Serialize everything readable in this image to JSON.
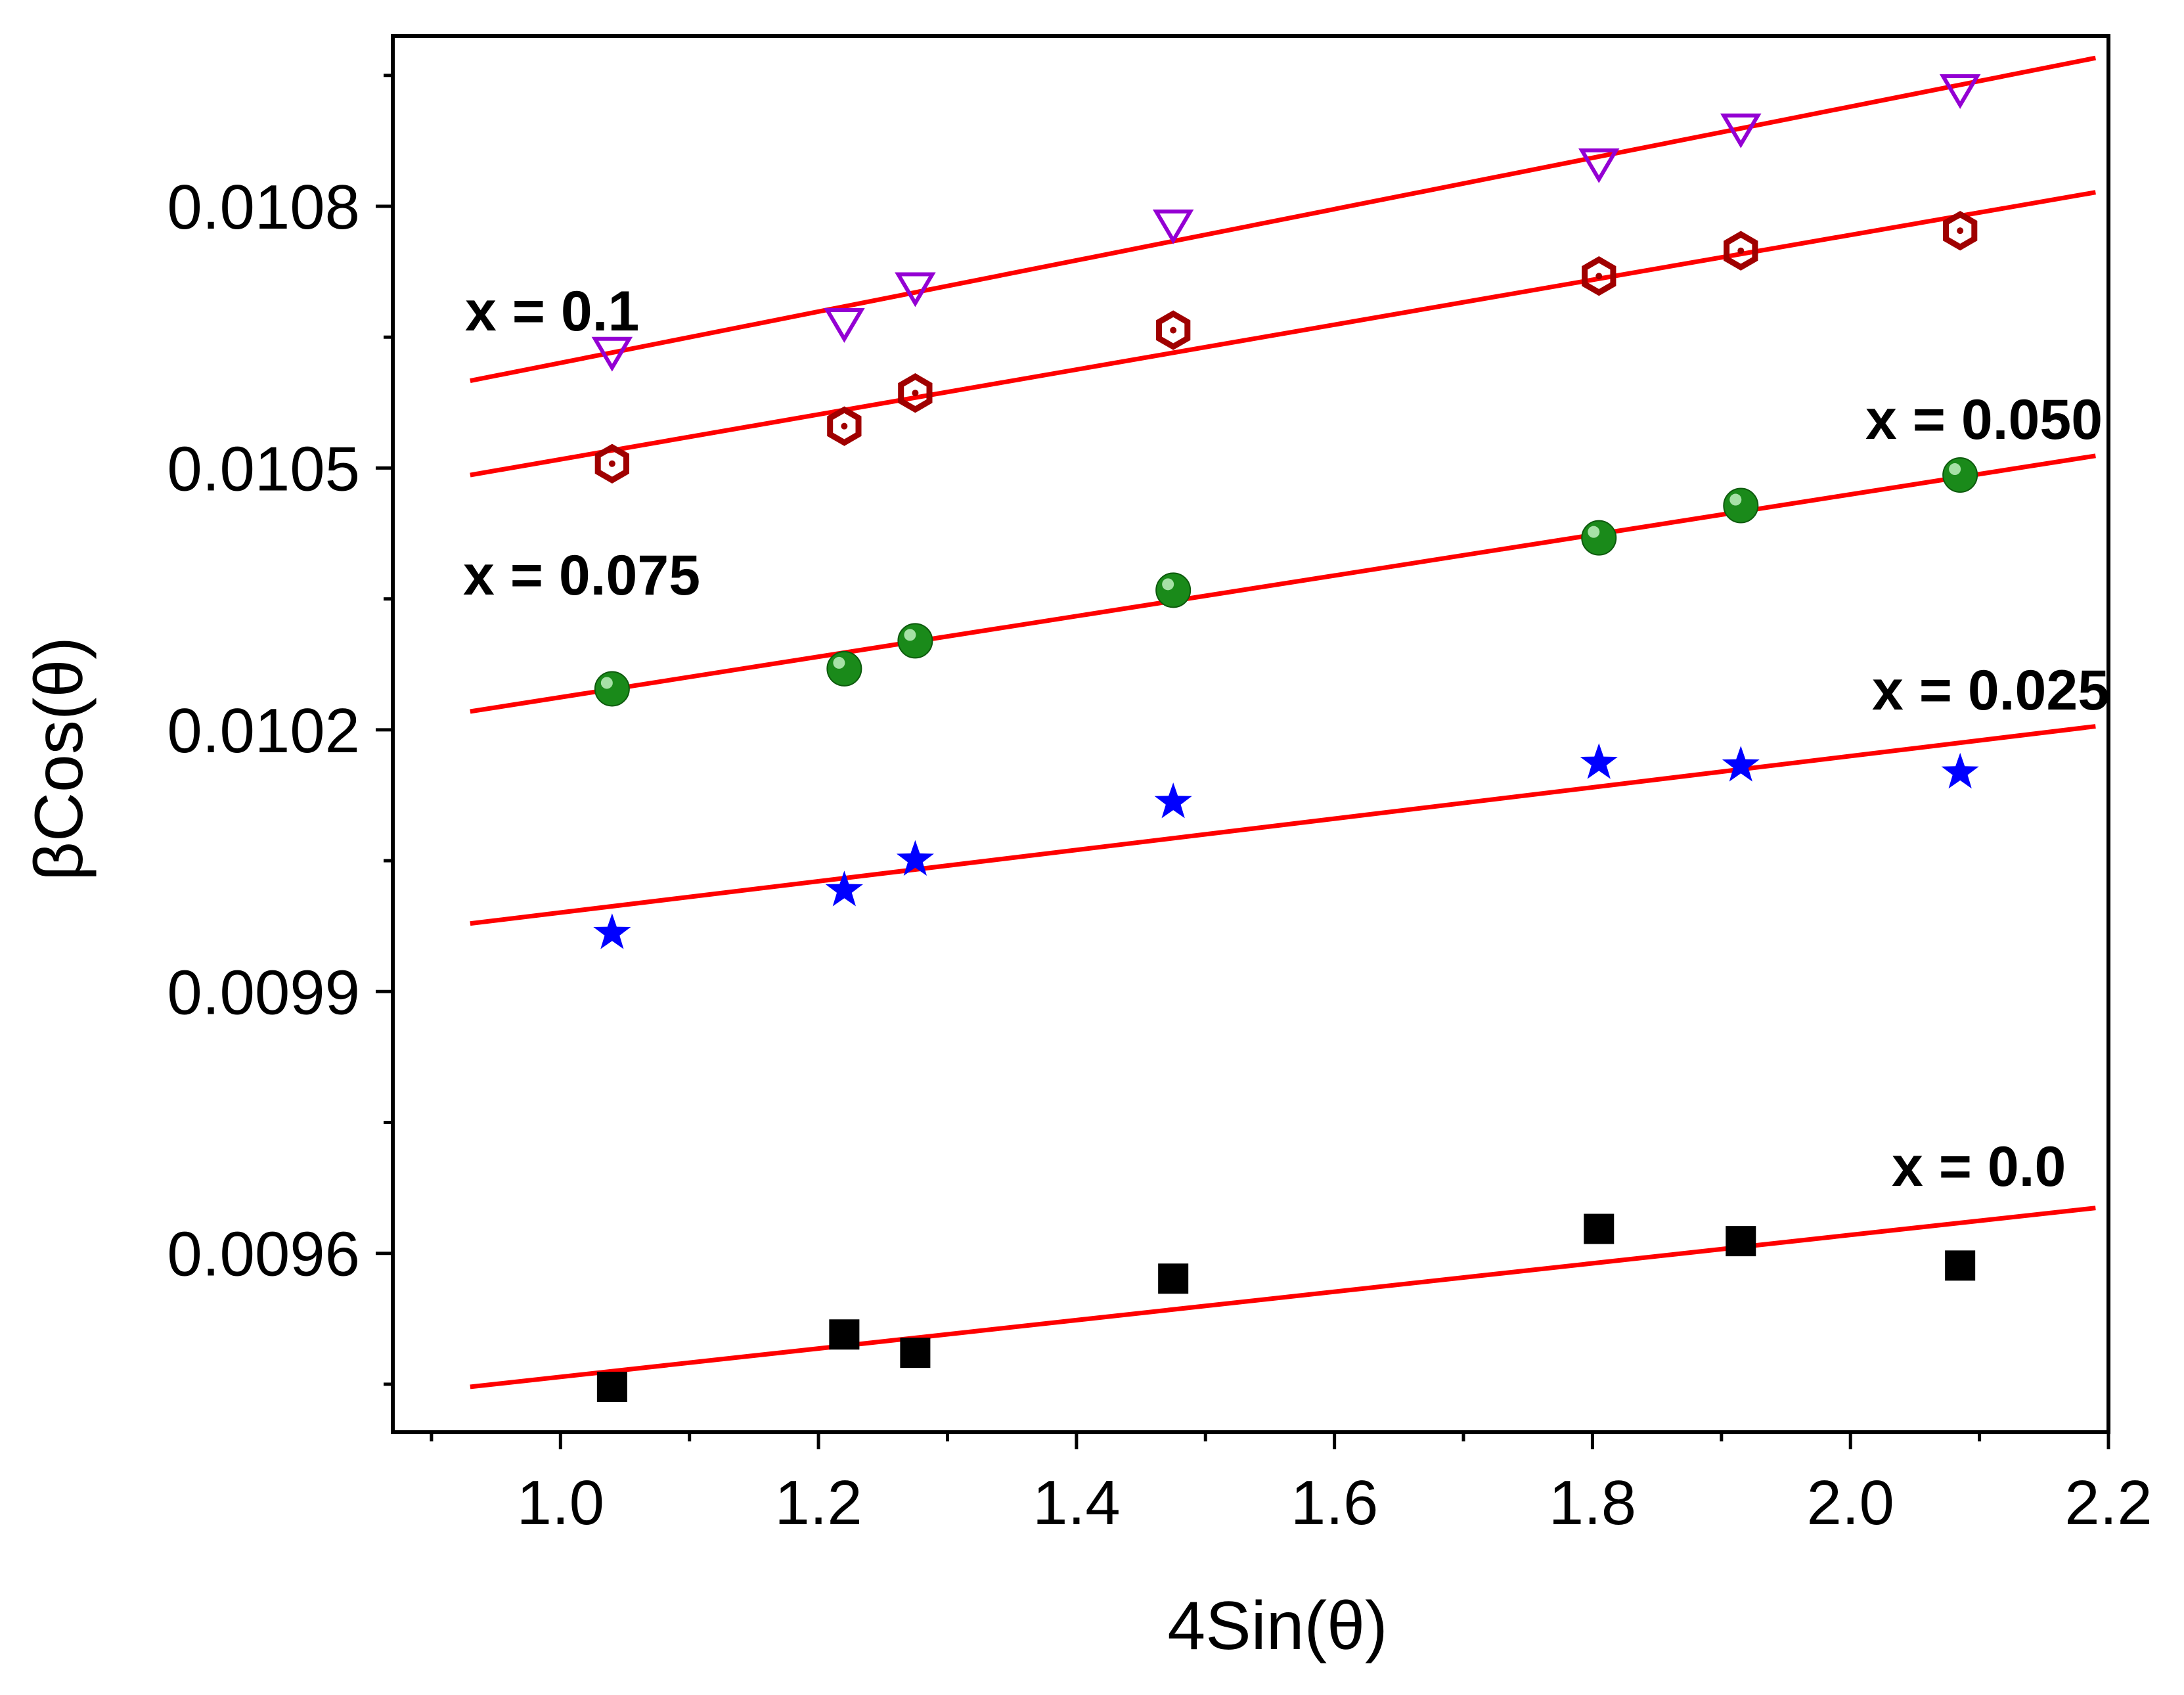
{
  "chart_data": {
    "type": "scatter",
    "title": "",
    "xlabel": "4Sin(θ)",
    "ylabel": "βCos(θ)",
    "xlim": [
      0.87,
      2.2
    ],
    "ylim": [
      0.009395,
      0.010995
    ],
    "x_ticks": [
      1.0,
      1.2,
      1.4,
      1.6,
      1.8,
      2.0,
      2.2
    ],
    "x_tick_labels": [
      "1.0",
      "1.2",
      "1.4",
      "1.6",
      "1.8",
      "2.0",
      "2.2"
    ],
    "y_ticks": [
      0.0096,
      0.0099,
      0.0102,
      0.0105,
      0.0108
    ],
    "y_tick_labels": [
      "0.0096",
      "0.0099",
      "0.0102",
      "0.0105",
      "0.0108"
    ],
    "fit_line_color": "#ff0000",
    "series": [
      {
        "name": "x = 0.0",
        "marker": "square",
        "color": "#000000",
        "x": [
          1.04,
          1.22,
          1.275,
          1.475,
          1.805,
          1.915,
          2.085
        ],
        "y": [
          0.009447,
          0.009507,
          0.009486,
          0.009571,
          0.009628,
          0.009614,
          0.009586
        ],
        "fit": [
          [
            0.93,
            0.009447
          ],
          [
            2.19,
            0.009652
          ]
        ]
      },
      {
        "name": "x = 0.025",
        "marker": "star",
        "color": "#0000ff",
        "x": [
          1.04,
          1.22,
          1.275,
          1.475,
          1.805,
          1.915,
          2.085
        ],
        "y": [
          0.009967,
          0.010016,
          0.010051,
          0.010117,
          0.010162,
          0.010159,
          0.010151
        ],
        "fit": [
          [
            0.93,
            0.009978
          ],
          [
            2.19,
            0.010204
          ]
        ]
      },
      {
        "name": "x = 0.050",
        "marker": "sphere",
        "color": "#1a8a1a",
        "x": [
          1.04,
          1.22,
          1.275,
          1.475,
          1.805,
          1.915,
          2.085
        ],
        "y": [
          0.010247,
          0.01027,
          0.010302,
          0.01036,
          0.01042,
          0.010457,
          0.010492
        ],
        "fit": [
          [
            0.93,
            0.010221
          ],
          [
            2.19,
            0.010514
          ]
        ]
      },
      {
        "name": "x = 0.075",
        "marker": "hexagon",
        "color": "#a00000",
        "x": [
          1.04,
          1.22,
          1.275,
          1.475,
          1.805,
          1.915,
          2.085
        ],
        "y": [
          0.010505,
          0.010548,
          0.010586,
          0.010658,
          0.01072,
          0.010749,
          0.010772
        ],
        "fit": [
          [
            0.93,
            0.010492
          ],
          [
            2.19,
            0.010816
          ]
        ]
      },
      {
        "name": "x = 0.1",
        "marker": "triangle-down",
        "color": "#9400d3",
        "x": [
          1.04,
          1.22,
          1.275,
          1.475,
          1.805,
          1.915,
          2.085
        ],
        "y": [
          0.010633,
          0.010666,
          0.010707,
          0.010779,
          0.010849,
          0.010889,
          0.010934
        ],
        "fit": [
          [
            0.93,
            0.0106
          ],
          [
            2.19,
            0.01097
          ]
        ]
      }
    ],
    "annotations": [
      "x = 0.1",
      "x = 0.050",
      "x = 0.075",
      "x = 0.025",
      "x = 0.0"
    ]
  }
}
